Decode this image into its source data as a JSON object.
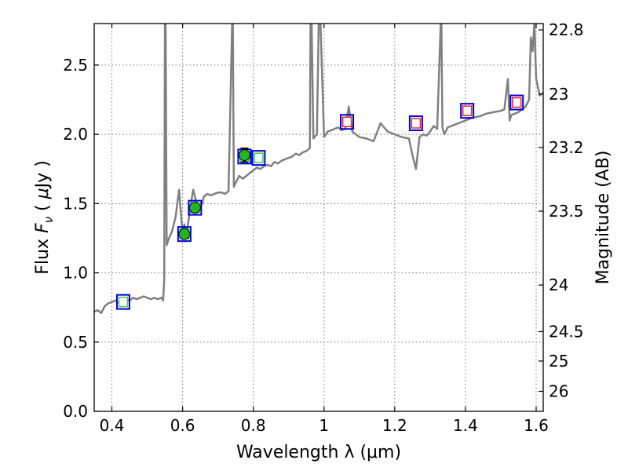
{
  "chart_data": {
    "type": "scatter",
    "xlabel": "Wavelength  λ (μm)",
    "ylabel": "Flux  F_ν  ( μJy )",
    "ylabel_parts": {
      "pre": "Flux ",
      "f": "F",
      "sub": "ν",
      "mid": " ( ",
      "mu": "μ",
      "post": "Jy )"
    },
    "y2label": "Magnitude (AB)",
    "xlim": [
      0.35,
      1.62
    ],
    "ylim": [
      0.0,
      2.8
    ],
    "grid": true,
    "x_ticks": [
      {
        "v": 0.4,
        "t": "0.4"
      },
      {
        "v": 0.6,
        "t": "0.6"
      },
      {
        "v": 0.8,
        "t": "0.8"
      },
      {
        "v": 1.0,
        "t": "1"
      },
      {
        "v": 1.2,
        "t": "1.2"
      },
      {
        "v": 1.4,
        "t": "1.4"
      },
      {
        "v": 1.6,
        "t": "1.6"
      }
    ],
    "y_ticks": [
      {
        "v": 0.0,
        "t": "0.0"
      },
      {
        "v": 0.5,
        "t": "0.5"
      },
      {
        "v": 1.0,
        "t": "1.0"
      },
      {
        "v": 1.5,
        "t": "1.5"
      },
      {
        "v": 2.0,
        "t": "2.0"
      },
      {
        "v": 2.5,
        "t": "2.5"
      }
    ],
    "y2_ticks": [
      "22.8",
      "23",
      "23.2",
      "23.5",
      "24",
      "24.5",
      "25",
      "26"
    ],
    "colors": {
      "model": "#808080",
      "observed": "#22b422",
      "box_blue": "#0000dd",
      "inner_green": "#44cc44",
      "inner_red": "#ee2222"
    },
    "series": [
      {
        "role": "model_sed",
        "x": [
          0.35,
          0.36,
          0.37,
          0.38,
          0.39,
          0.4,
          0.41,
          0.42,
          0.43,
          0.44,
          0.45,
          0.46,
          0.47,
          0.48,
          0.49,
          0.5,
          0.51,
          0.52,
          0.53,
          0.54,
          0.545,
          0.548,
          0.55,
          0.552,
          0.555,
          0.56,
          0.57,
          0.58,
          0.59,
          0.6,
          0.605,
          0.61,
          0.62,
          0.63,
          0.64,
          0.65,
          0.656,
          0.66,
          0.67,
          0.68,
          0.69,
          0.7,
          0.71,
          0.72,
          0.73,
          0.74,
          0.742,
          0.745,
          0.75,
          0.76,
          0.77,
          0.78,
          0.79,
          0.8,
          0.81,
          0.82,
          0.83,
          0.84,
          0.85,
          0.86,
          0.87,
          0.88,
          0.89,
          0.9,
          0.91,
          0.92,
          0.93,
          0.94,
          0.95,
          0.96,
          0.962,
          0.965,
          0.97,
          0.98,
          0.985,
          0.99,
          1.0,
          1.01,
          1.02,
          1.03,
          1.04,
          1.05,
          1.06,
          1.07,
          1.08,
          1.09,
          1.1,
          1.12,
          1.14,
          1.16,
          1.18,
          1.2,
          1.22,
          1.24,
          1.25,
          1.26,
          1.27,
          1.28,
          1.29,
          1.3,
          1.31,
          1.32,
          1.33,
          1.332,
          1.335,
          1.34,
          1.35,
          1.36,
          1.38,
          1.4,
          1.42,
          1.44,
          1.46,
          1.48,
          1.5,
          1.51,
          1.52,
          1.525,
          1.53,
          1.54,
          1.55,
          1.56,
          1.57,
          1.58,
          1.585,
          1.59,
          1.595,
          1.6,
          1.61,
          1.62
        ],
        "y": [
          0.72,
          0.73,
          0.71,
          0.76,
          0.78,
          0.79,
          0.8,
          0.78,
          0.79,
          0.81,
          0.8,
          0.82,
          0.81,
          0.82,
          0.83,
          0.82,
          0.81,
          0.82,
          0.81,
          0.82,
          0.8,
          0.95,
          2.8,
          2.8,
          1.2,
          1.24,
          1.3,
          1.4,
          1.6,
          1.28,
          1.35,
          1.25,
          1.44,
          1.6,
          1.5,
          1.48,
          1.5,
          1.55,
          1.57,
          1.56,
          1.57,
          1.58,
          1.58,
          1.57,
          1.59,
          2.8,
          2.8,
          1.62,
          1.65,
          1.7,
          1.68,
          1.7,
          1.72,
          1.74,
          1.76,
          1.75,
          1.77,
          1.78,
          1.77,
          1.8,
          1.79,
          1.81,
          1.82,
          1.83,
          1.84,
          1.86,
          1.85,
          1.87,
          1.88,
          1.9,
          2.8,
          2.8,
          1.97,
          2.0,
          2.8,
          2.8,
          1.98,
          2.02,
          2.03,
          2.04,
          2.05,
          2.03,
          2.04,
          2.2,
          2.02,
          2.0,
          1.98,
          1.97,
          1.95,
          2.08,
          2.02,
          2.0,
          1.98,
          1.97,
          1.85,
          1.75,
          1.98,
          2.0,
          1.99,
          2.02,
          2.06,
          2.04,
          2.8,
          2.8,
          2.05,
          2.0,
          2.05,
          2.06,
          2.08,
          2.1,
          2.12,
          2.13,
          2.15,
          2.16,
          2.17,
          2.18,
          2.4,
          2.1,
          2.14,
          2.15,
          2.16,
          2.18,
          2.2,
          2.25,
          2.7,
          2.6,
          2.8,
          2.4,
          2.28,
          2.3
        ]
      },
      {
        "role": "observed_photometry",
        "points": [
          {
            "x": 0.605,
            "y": 1.28,
            "err": 0.03
          },
          {
            "x": 0.635,
            "y": 1.47,
            "err": 0.03
          },
          {
            "x": 0.775,
            "y": 1.85,
            "err": 0.05
          }
        ]
      },
      {
        "role": "model_photometry_boxes",
        "points": [
          {
            "x": 0.432,
            "y": 0.79,
            "inner": "green"
          },
          {
            "x": 0.605,
            "y": 1.28,
            "inner": "green"
          },
          {
            "x": 0.635,
            "y": 1.47,
            "inner": "green"
          },
          {
            "x": 0.775,
            "y": 1.84,
            "inner": "green"
          },
          {
            "x": 0.815,
            "y": 1.83,
            "inner": "green"
          },
          {
            "x": 1.065,
            "y": 2.09,
            "inner": "red"
          },
          {
            "x": 1.26,
            "y": 2.08,
            "inner": "red"
          },
          {
            "x": 1.405,
            "y": 2.17,
            "inner": "red"
          },
          {
            "x": 1.545,
            "y": 2.23,
            "inner": "red"
          }
        ]
      }
    ]
  }
}
